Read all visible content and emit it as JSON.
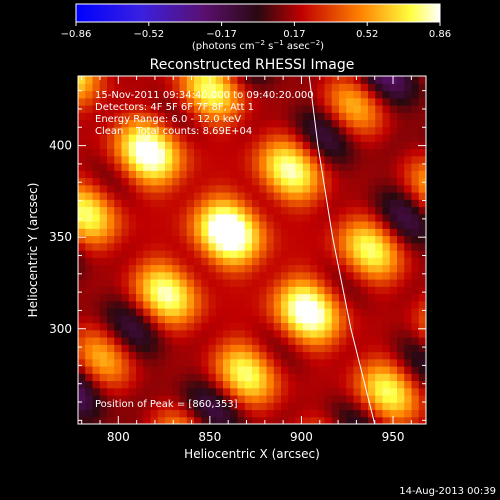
{
  "chart_data": {
    "type": "heatmap",
    "title": "Reconstructed RHESSI Image",
    "xlabel": "Heliocentric X (arcsec)",
    "ylabel": "Heliocentric Y (arcsec)",
    "xlim": [
      778,
      968
    ],
    "ylim": [
      248,
      438
    ],
    "x_ticks": [
      800,
      850,
      900,
      950
    ],
    "y_ticks": [
      300,
      350,
      400
    ],
    "colorbar": {
      "min": -0.86,
      "max": 0.86,
      "ticks": [
        "−0.86",
        "−0.52",
        "−0.17",
        "0.17",
        "0.52",
        "0.86"
      ],
      "unit_base": "(photons cm",
      "unit_exp1": "−2",
      "unit_mid": " s",
      "unit_exp2": "−1",
      "unit_mid2": " asec",
      "unit_exp3": "−2",
      "unit_end": ")",
      "colormap": "rhessi_thermal"
    },
    "annotations": {
      "time_range": "15-Nov-2011 09:34:40.000 to 09:40:20.000",
      "detectors": "Detectors: 4F 5F 6F 7F 8F, Att 1",
      "energy_range": "Energy Range: 6.0 - 12.0 keV",
      "clean_totals": "Clean    Total counts: 8.69E+04",
      "peak": "Position of Peak = [860,353]"
    },
    "peak_position": [
      860,
      353
    ],
    "limb_curve": {
      "description": "solar limb",
      "points": [
        [
          903,
          448
        ],
        [
          909,
          400
        ],
        [
          917,
          350
        ],
        [
          927,
          300
        ],
        [
          940,
          248
        ]
      ]
    }
  },
  "footer": {
    "date": "14-Aug-2013 00:39"
  }
}
